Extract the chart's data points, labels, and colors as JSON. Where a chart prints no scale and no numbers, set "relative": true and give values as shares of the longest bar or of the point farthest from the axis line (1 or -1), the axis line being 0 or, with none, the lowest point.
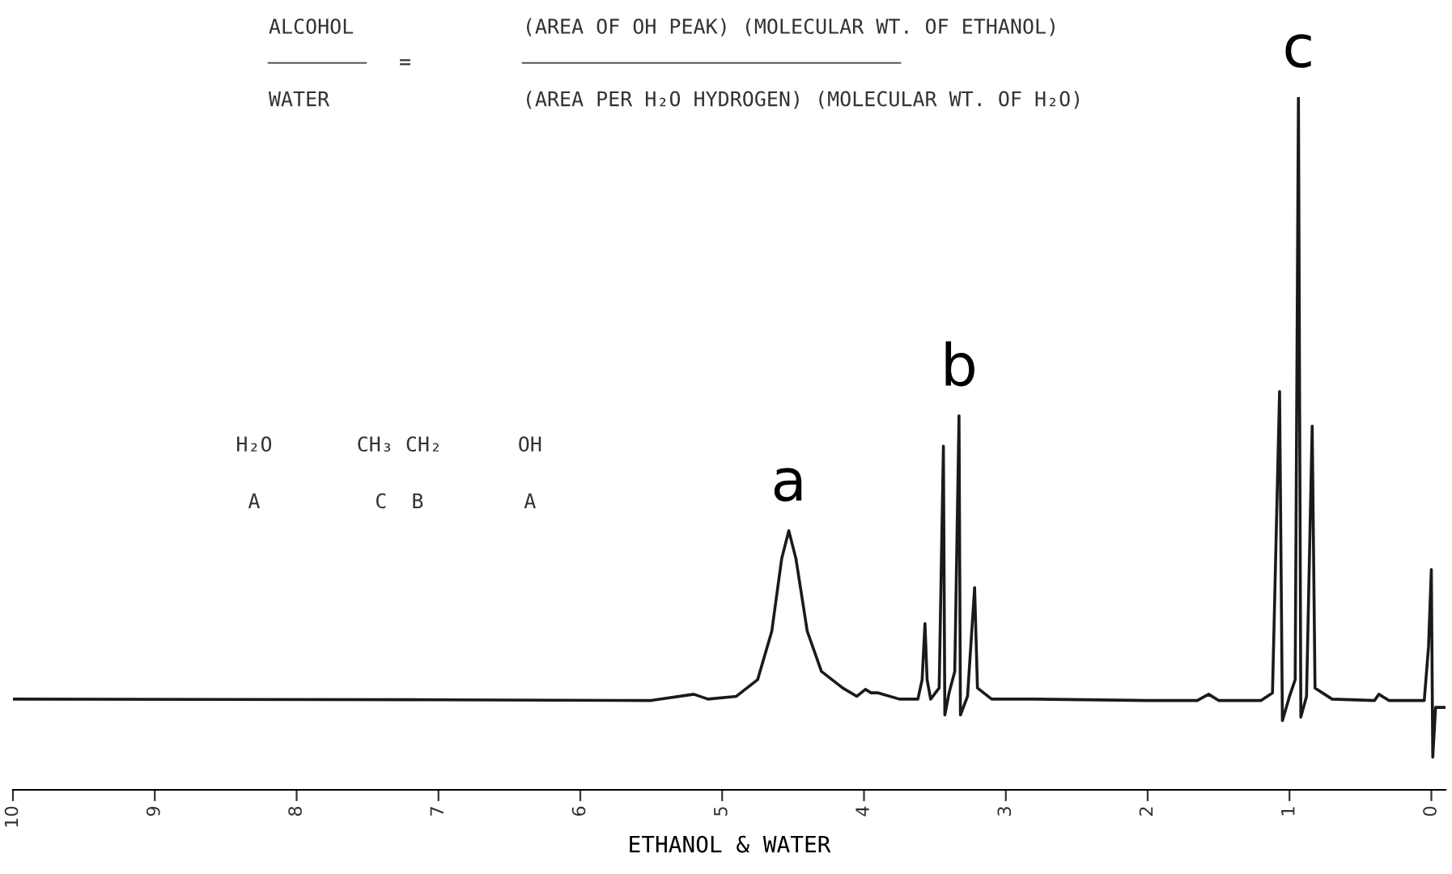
{
  "chart_data": {
    "type": "line",
    "relative": true,
    "xlabel": "ETHANOL & WATER",
    "xlim": [
      10,
      -0.1
    ],
    "xticks": [
      10,
      9,
      8,
      7,
      6,
      5,
      4,
      3,
      2,
      1,
      0
    ],
    "grid": false,
    "legend": false,
    "marker": "none",
    "line_style": "solid",
    "series": [
      {
        "color": "#1a1a1a",
        "x": [
          10,
          7,
          5.5,
          5.2,
          5.1,
          4.9,
          4.75,
          4.65,
          4.58,
          4.53,
          4.48,
          4.4,
          4.3,
          4.15,
          4.05,
          3.99,
          3.95,
          3.9,
          3.75,
          3.62,
          3.59,
          3.57,
          3.555,
          3.53,
          3.47,
          3.44,
          3.43,
          3.4,
          3.36,
          3.33,
          3.32,
          3.27,
          3.22,
          3.2,
          3.1,
          2.8,
          2.0,
          1.65,
          1.57,
          1.5,
          1.2,
          1.12,
          1.07,
          1.05,
          1.0,
          0.96,
          0.937,
          0.92,
          0.88,
          0.84,
          0.82,
          0.7,
          0.4,
          0.37,
          0.3,
          0.05,
          0.02,
          0.0,
          -0.01,
          -0.03,
          -0.1
        ],
        "values": [
          0.131,
          0.13,
          0.129,
          0.138,
          0.131,
          0.135,
          0.159,
          0.229,
          0.334,
          0.374,
          0.334,
          0.229,
          0.171,
          0.147,
          0.135,
          0.145,
          0.14,
          0.14,
          0.131,
          0.131,
          0.159,
          0.24,
          0.159,
          0.131,
          0.147,
          0.496,
          0.108,
          0.14,
          0.171,
          0.54,
          0.108,
          0.135,
          0.292,
          0.147,
          0.131,
          0.131,
          0.129,
          0.129,
          0.138,
          0.129,
          0.129,
          0.14,
          0.575,
          0.1,
          0.135,
          0.159,
          1.0,
          0.105,
          0.135,
          0.525,
          0.147,
          0.131,
          0.129,
          0.138,
          0.129,
          0.129,
          0.206,
          0.318,
          0.047,
          0.119,
          0.119
        ]
      }
    ],
    "annotations": [
      {
        "text": "a",
        "x": 4.53,
        "y": 0.374
      },
      {
        "text": "b",
        "x": 3.33,
        "y": 0.54
      },
      {
        "text": "c",
        "x": 0.937,
        "y": 1.0
      },
      "ALCOHOL",
      "WATER",
      "=",
      "(AREA OF OH PEAK) (MOLECULAR WT. OF ETHANOL)",
      "(AREA PER H₂O HYDROGEN) (MOLECULAR WT. OF H₂O)",
      "H₂O",
      "CH₃ CH₂",
      "OH",
      "A",
      "C  B",
      "A"
    ]
  }
}
